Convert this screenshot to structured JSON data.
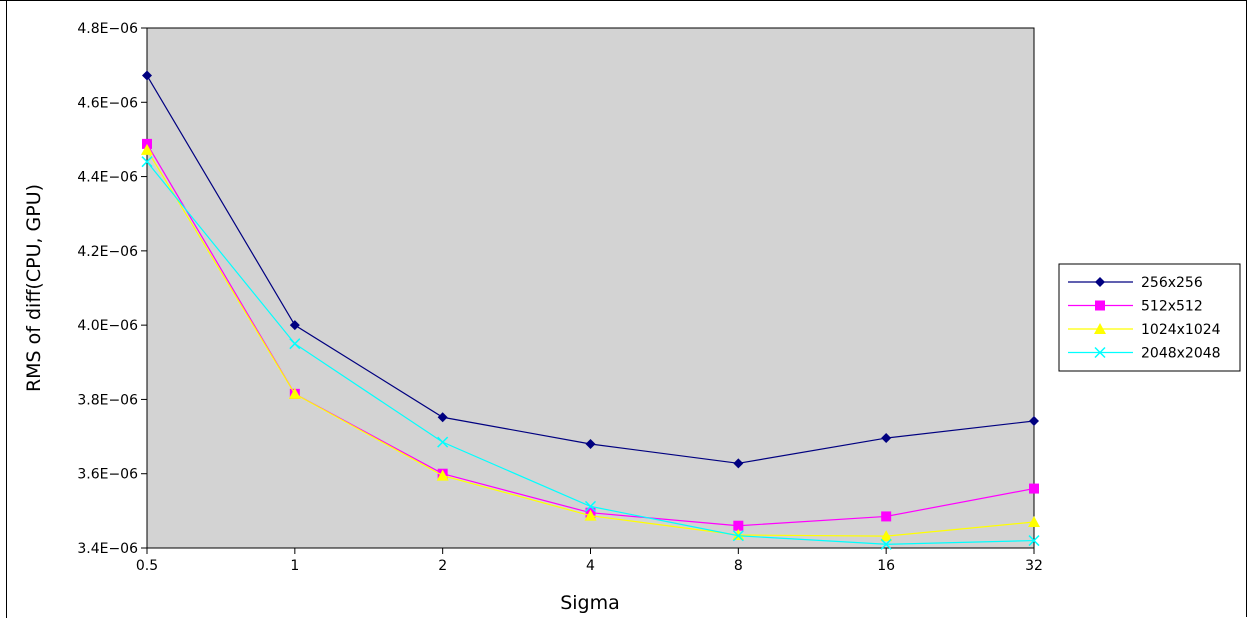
{
  "chart_data": {
    "type": "line",
    "xlabel": "Sigma",
    "ylabel": "RMS of diff(CPU, GPU)",
    "categories": [
      "0.5",
      "1",
      "2",
      "4",
      "8",
      "16",
      "32"
    ],
    "y_ticks": [
      "3.4E−06",
      "3.6E−06",
      "3.8E−06",
      "4.0E−06",
      "4.2E−06",
      "4.4E−06",
      "4.6E−06",
      "4.8E−06"
    ],
    "ylim": [
      3.4e-06,
      4.8e-06
    ],
    "grid": false,
    "plot_background": "#d3d3d3",
    "legend_position": "right",
    "series": [
      {
        "name": "256x256",
        "color": "#000080",
        "marker": "diamond",
        "values": [
          4.672e-06,
          4e-06,
          3.752e-06,
          3.68e-06,
          3.628e-06,
          3.696e-06,
          3.742e-06
        ]
      },
      {
        "name": "512x512",
        "color": "#ff00ff",
        "marker": "square",
        "values": [
          4.488e-06,
          3.815e-06,
          3.6e-06,
          3.495e-06,
          3.46e-06,
          3.485e-06,
          3.56e-06
        ]
      },
      {
        "name": "1024x1024",
        "color": "#ffff00",
        "marker": "triangle",
        "values": [
          4.472e-06,
          3.815e-06,
          3.595e-06,
          3.487e-06,
          3.435e-06,
          3.432e-06,
          3.47e-06
        ]
      },
      {
        "name": "2048x2048",
        "color": "#00ffff",
        "marker": "cross",
        "values": [
          4.44e-06,
          3.95e-06,
          3.685e-06,
          3.512e-06,
          3.433e-06,
          3.41e-06,
          3.42e-06
        ]
      }
    ]
  }
}
